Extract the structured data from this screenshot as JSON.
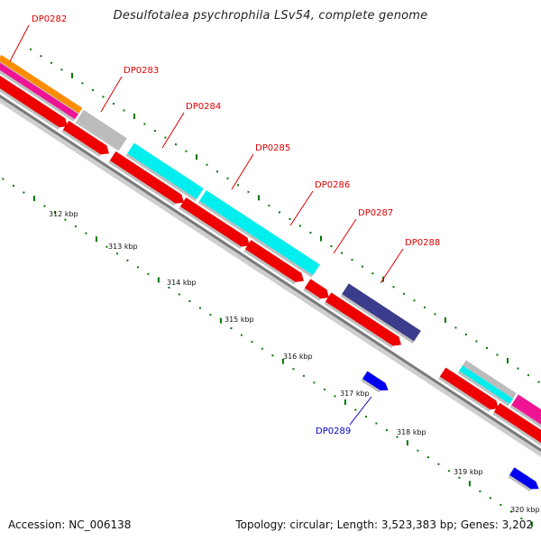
{
  "title": "Desulfotalea psychrophila LSv54, complete genome",
  "footer": {
    "accession": "Accession: NC_006138",
    "summary": "Topology: circular; Length: 3,523,383 bp; Genes: 3,202"
  },
  "scale_labels": [
    "312 kbp",
    "313 kbp",
    "314 kbp",
    "315 kbp",
    "316 kbp",
    "317 kbp",
    "318 kbp",
    "319 kbp",
    "320 kbp"
  ],
  "gene_labels": [
    {
      "text": "DP0282",
      "color": "#dd0000"
    },
    {
      "text": "DP0283",
      "color": "#dd0000"
    },
    {
      "text": "DP0284",
      "color": "#dd0000"
    },
    {
      "text": "DP0285",
      "color": "#dd0000"
    },
    {
      "text": "DP0286",
      "color": "#dd0000"
    },
    {
      "text": "DP0287",
      "color": "#dd0000"
    },
    {
      "text": "DP0288",
      "color": "#dd0000"
    },
    {
      "text": "DP0289",
      "color": "#0000cc"
    }
  ],
  "colors": {
    "cds": "#ee0000",
    "cds_reverse": "#0000ee",
    "backbone": "#888888",
    "tick": "#007700",
    "cog_orange": "#ff8c00",
    "cog_magenta": "#ee1493",
    "cog_gray": "#bbbbbb",
    "cog_cyan": "#00eeee",
    "cog_navy": "#3c3c8c"
  }
}
